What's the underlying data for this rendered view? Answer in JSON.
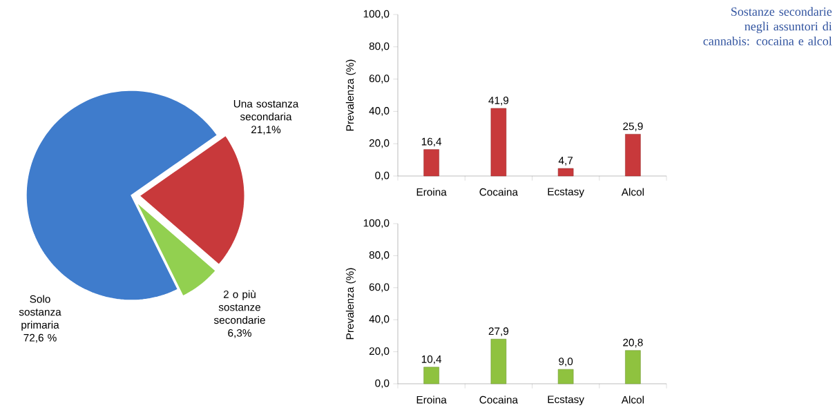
{
  "chart_data": [
    {
      "type": "pie",
      "categories": [
        "Una sostanza secondaria",
        "2 o più sostanze secondarie",
        "Solo sostanza primaria"
      ],
      "values": [
        21.1,
        6.3,
        72.6
      ],
      "colors": [
        "#c8393b",
        "#92d050",
        "#3f7ccc"
      ],
      "value_labels": [
        "21,1%",
        "6,3%",
        "72,6 %"
      ]
    },
    {
      "type": "bar",
      "categories": [
        "Eroina",
        "Cocaina",
        "Ecstasy",
        "Alcol"
      ],
      "ylabel": "Prevalenza (%)",
      "ylim": [
        0,
        100
      ],
      "yticks": [
        {
          "value": 0,
          "label": "0,0"
        },
        {
          "value": 20,
          "label": "20,0"
        },
        {
          "value": 40,
          "label": "40,0"
        },
        {
          "value": 60,
          "label": "60,0"
        },
        {
          "value": 80,
          "label": "80,0"
        },
        {
          "value": 100,
          "label": "100,0"
        }
      ],
      "series": [
        {
          "color": "#c8393b",
          "values": [
            16.4,
            41.9,
            4.7,
            25.9
          ],
          "value_labels": [
            "16,4",
            "41,9",
            "4,7",
            "25,9"
          ]
        }
      ]
    },
    {
      "type": "bar",
      "categories": [
        "Eroina",
        "Cocaina",
        "Ecstasy",
        "Alcol"
      ],
      "ylabel": "Prevalenza (%)",
      "ylim": [
        0,
        100
      ],
      "yticks": [
        {
          "value": 0,
          "label": "0,0"
        },
        {
          "value": 20,
          "label": "20,0"
        },
        {
          "value": 40,
          "label": "40,0"
        },
        {
          "value": 60,
          "label": "60,0"
        },
        {
          "value": 80,
          "label": "80,0"
        },
        {
          "value": 100,
          "label": "100,0"
        }
      ],
      "series": [
        {
          "color": "#8fc23f",
          "values": [
            10.4,
            27.9,
            9.0,
            20.8
          ],
          "value_labels": [
            "10,4",
            "27,9",
            "9,0",
            "20,8"
          ]
        }
      ]
    },
    {
      "type": "other",
      "title": "Sostanze secondarie negli assuntori di cannabis: cocaina e alcol"
    }
  ]
}
